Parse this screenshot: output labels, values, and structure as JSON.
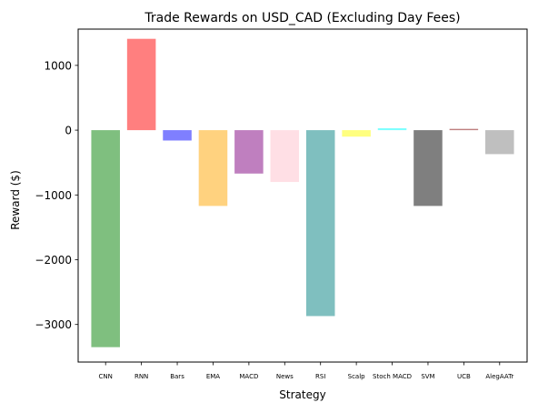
{
  "chart_data": {
    "type": "bar",
    "title": "Trade Rewards on USD_CAD (Excluding Day Fees)",
    "xlabel": "Strategy",
    "ylabel": "Reward ($)",
    "ylim": [
      -3580,
      1560
    ],
    "yticks": [
      -3000,
      -2000,
      -1000,
      0,
      1000
    ],
    "ytick_labels": [
      "−3000",
      "−2000",
      "−1000",
      "0",
      "1000"
    ],
    "grid": false,
    "legend": "none",
    "categories": [
      "CNN",
      "RNN",
      "Bars",
      "EMA",
      "MACD",
      "News",
      "RSI",
      "Scalp",
      "Stoch MACD",
      "SVM",
      "UCB",
      "AlegAATr"
    ],
    "values": [
      -3350,
      1410,
      -160,
      -1170,
      -670,
      -800,
      -2870,
      -100,
      30,
      -1170,
      20,
      -370
    ],
    "colors": [
      "#008000",
      "#ff0000",
      "#0000ff",
      "#ffa500",
      "#800080",
      "#ffc0cb",
      "#008080",
      "#ffff00",
      "#00ffff",
      "#000000",
      "#800000",
      "#808080"
    ],
    "bar_alpha": 0.5
  }
}
